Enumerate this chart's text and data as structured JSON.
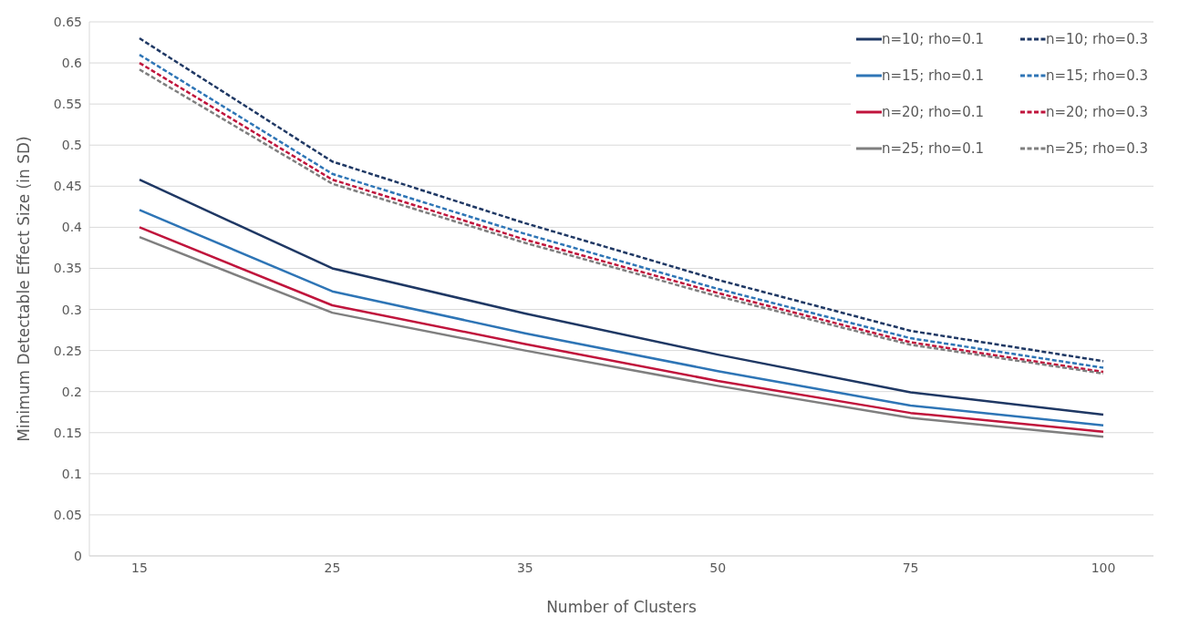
{
  "chart_data": {
    "type": "line",
    "xlabel": "Number of Clusters",
    "ylabel": "Minimum Detectable Effect Size (in SD)",
    "categories": [
      "15",
      "25",
      "35",
      "50",
      "75",
      "100"
    ],
    "series": [
      {
        "name": "n=10; rho=0.1",
        "color": "#1f3864",
        "line_style": "solid",
        "values": [
          0.458,
          0.35,
          0.295,
          0.245,
          0.199,
          0.172
        ]
      },
      {
        "name": "n=10; rho=0.3",
        "color": "#1f3864",
        "line_style": "dashed",
        "values": [
          0.63,
          0.48,
          0.405,
          0.336,
          0.274,
          0.237
        ]
      },
      {
        "name": "n=15; rho=0.1",
        "color": "#2e75b6",
        "line_style": "solid",
        "values": [
          0.421,
          0.322,
          0.271,
          0.225,
          0.183,
          0.159
        ]
      },
      {
        "name": "n=15; rho=0.3",
        "color": "#2e75b6",
        "line_style": "dashed",
        "values": [
          0.61,
          0.465,
          0.392,
          0.325,
          0.265,
          0.229
        ]
      },
      {
        "name": "n=20; rho=0.1",
        "color": "#c0143c",
        "line_style": "solid",
        "values": [
          0.4,
          0.305,
          0.258,
          0.213,
          0.174,
          0.151
        ]
      },
      {
        "name": "n=20; rho=0.3",
        "color": "#c0143c",
        "line_style": "dashed",
        "values": [
          0.6,
          0.458,
          0.385,
          0.32,
          0.26,
          0.224
        ]
      },
      {
        "name": "n=25; rho=0.1",
        "color": "#7f7f7f",
        "line_style": "solid",
        "values": [
          0.388,
          0.296,
          0.25,
          0.207,
          0.168,
          0.145
        ]
      },
      {
        "name": "n=25; rho=0.3",
        "color": "#7f7f7f",
        "line_style": "dashed",
        "values": [
          0.592,
          0.453,
          0.381,
          0.316,
          0.257,
          0.222
        ]
      }
    ],
    "ylim": [
      0,
      0.65
    ],
    "yticks": [
      0,
      0.05,
      0.1,
      0.15,
      0.2,
      0.25,
      0.3,
      0.35,
      0.4,
      0.45,
      0.5,
      0.55,
      0.6,
      0.65
    ],
    "grid": "y",
    "legend": "top right",
    "marker": "none"
  }
}
